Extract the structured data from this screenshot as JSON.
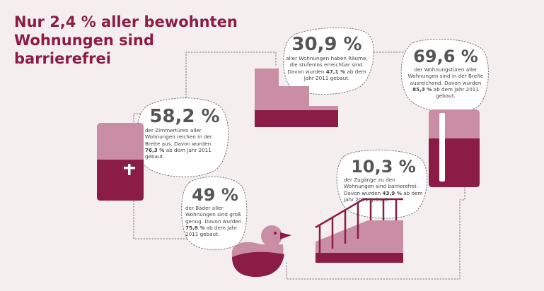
{
  "title": "Nur 2,4 % aller bewohnten Wohnungen sind barrierefrei",
  "colors": {
    "accent": "#8a1c46",
    "light": "#c98ea3",
    "background": "#f5eeef",
    "text": "#4a4a4a"
  },
  "stats": {
    "steps": {
      "value": "30,9 %",
      "text_before": "aller Wohnungen haben Räume, die stufenlos erreichbar sind. Davon wurden ",
      "highlight": "47,1 %",
      "text_after": " ab dem Jahr 2011 gebaut.",
      "icon": "stairs-icon"
    },
    "apartment_doors": {
      "value": "69,6 %",
      "text_before": "der Wohnungstüren aller Wohnungen sind in der Breite ausreichend. Davon wurden ",
      "highlight": "85,3 %",
      "text_after": " ab dem Jahr 2011 gebaut.",
      "icon": "door-icon"
    },
    "room_doors": {
      "value": "58,2 %",
      "text_before": "der Zimmertüren aller Wohnungen reichen in der Breite aus. Davon wurden ",
      "highlight": "76,3 %",
      "text_after": " ab dem Jahr 2011 gebaut.",
      "icon": "door-icon"
    },
    "entrances": {
      "value": "10,3 %",
      "text_before": "der Zugänge zu den Wohnungen sind barrierefrei. Davon wurden ",
      "highlight": "43,9 %",
      "text_after": " ab dem Jahr 2011 gebaut.",
      "icon": "ramp-icon"
    },
    "bathrooms": {
      "value": "49 %",
      "text_before": "der Bäder aller Wohnungen sind groß genug. Davon wurden ",
      "highlight": "75,8 %",
      "text_after": " ab dem Jahr 2011 gebaut.",
      "icon": "rubber-duck-icon"
    }
  }
}
